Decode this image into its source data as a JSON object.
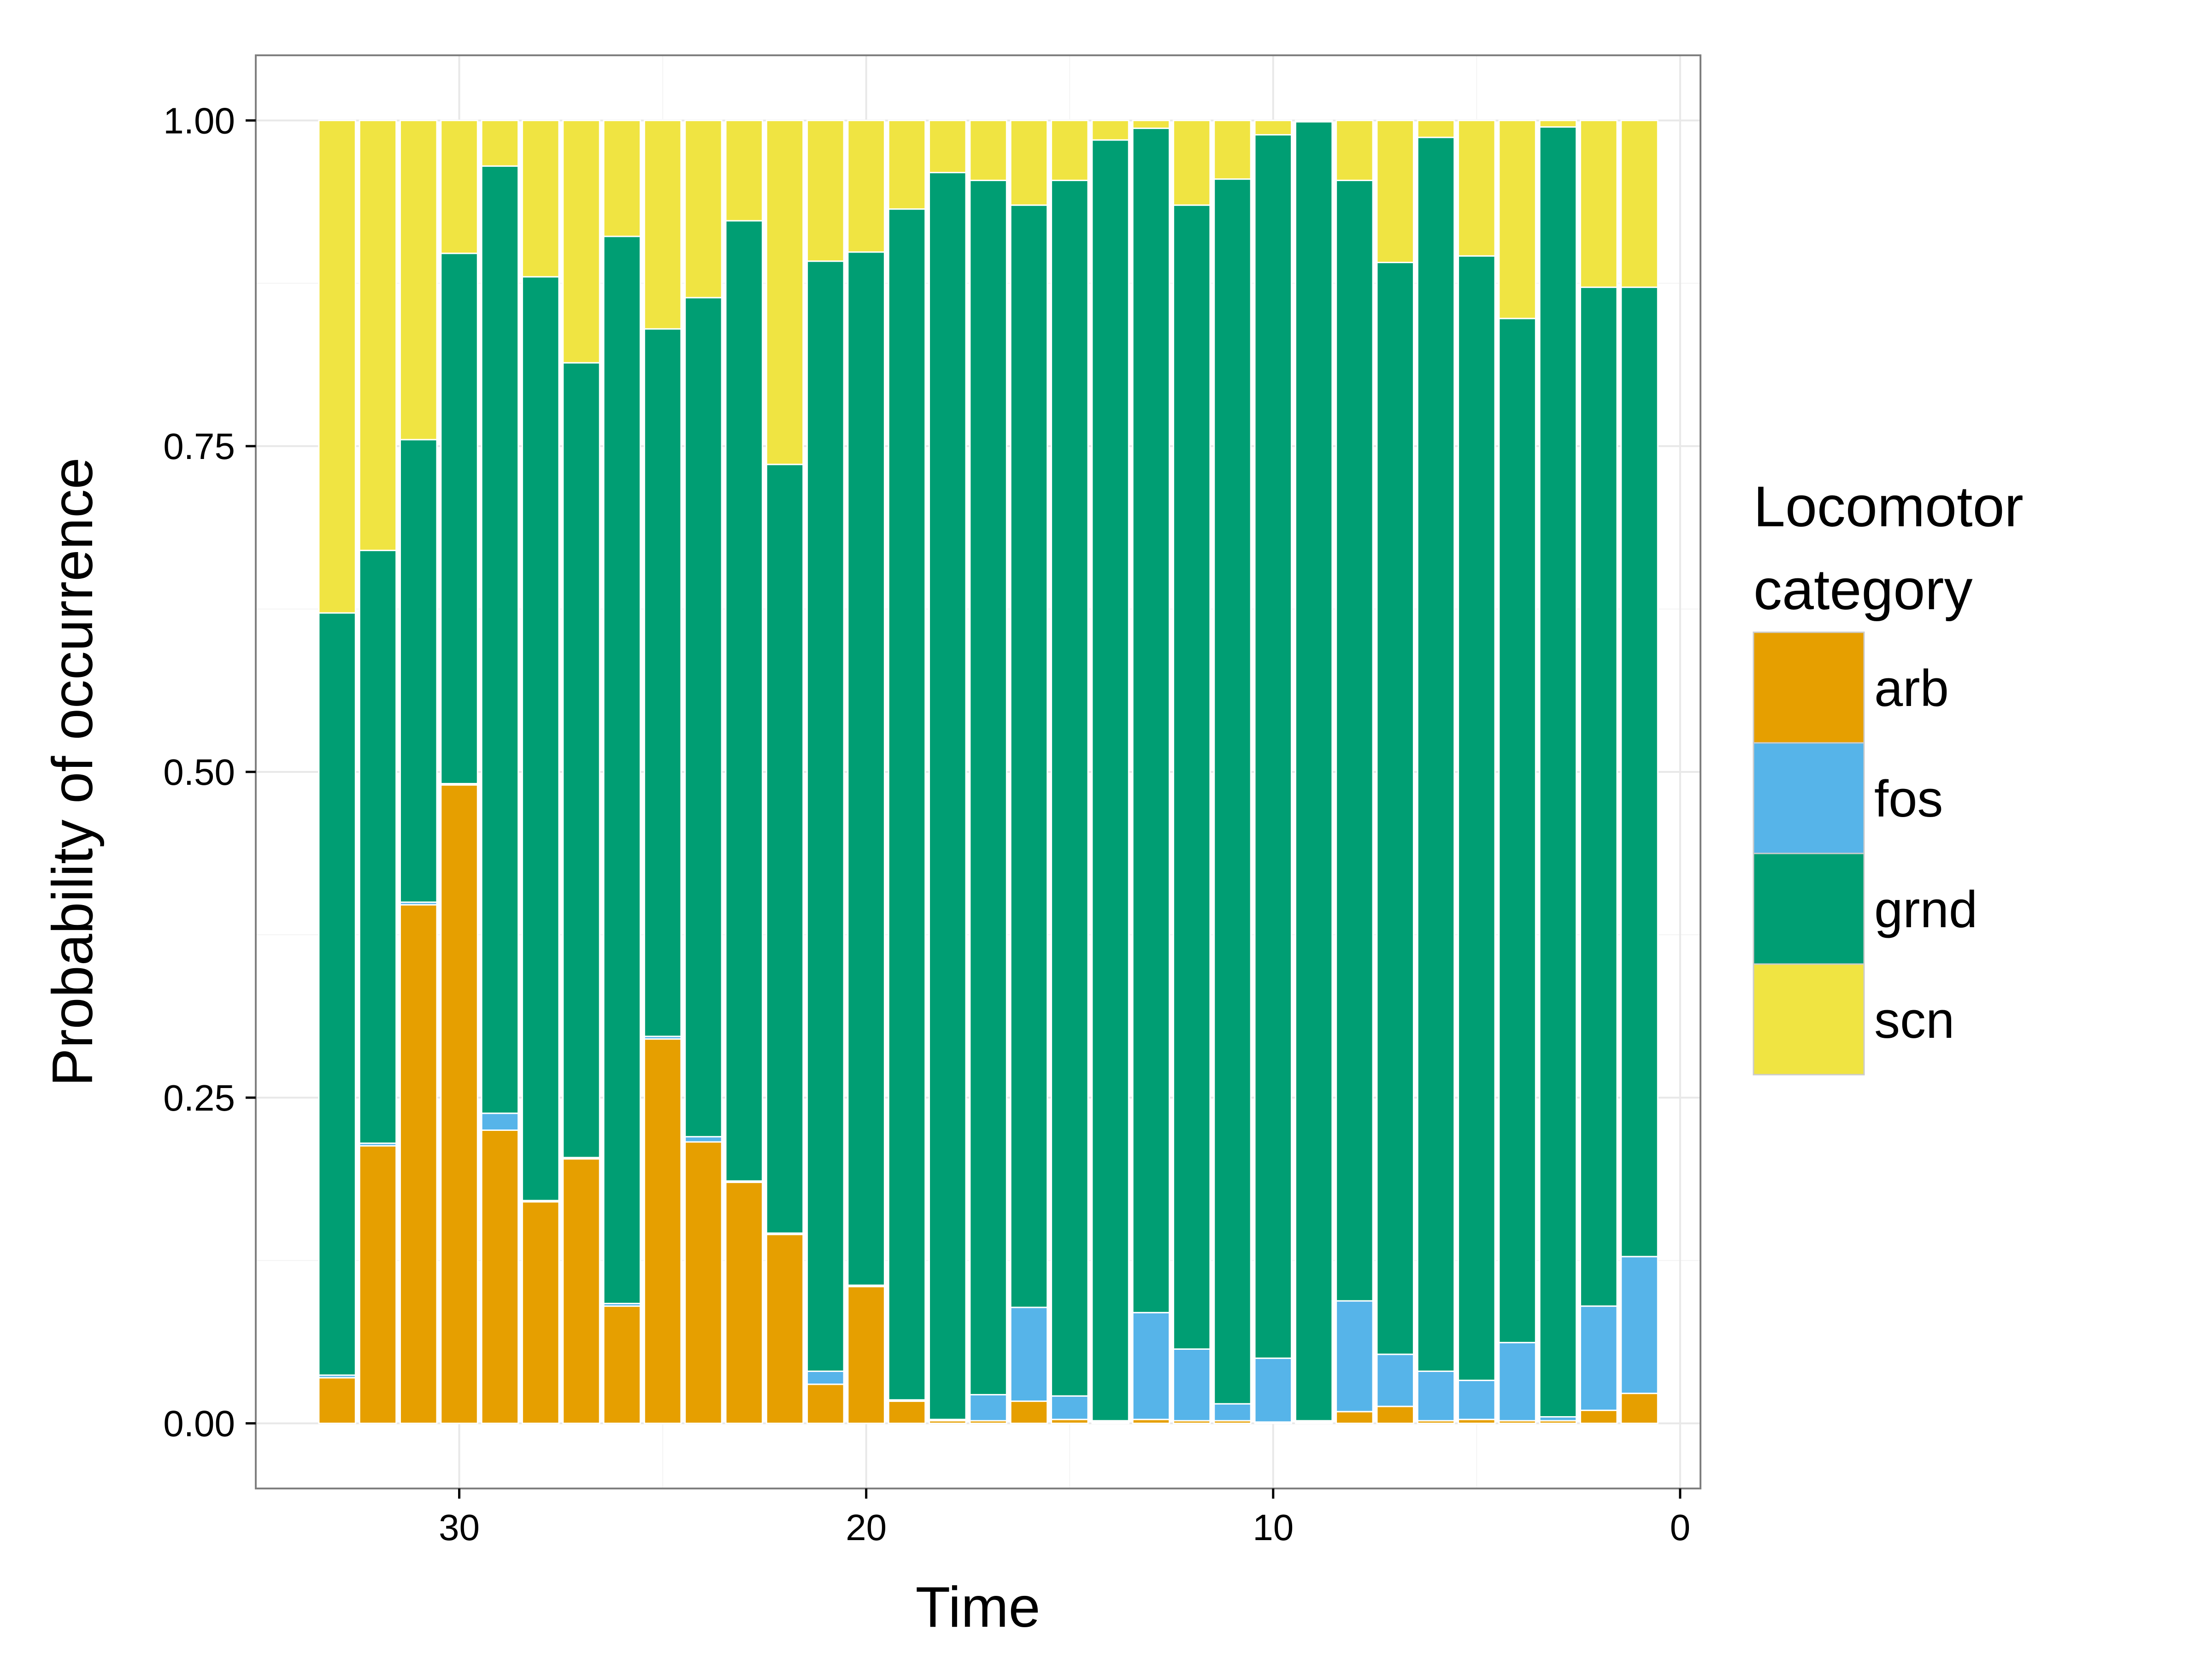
{
  "chart_data": {
    "type": "bar",
    "stacked": true,
    "xlabel": "Time",
    "ylabel": "Probability of occurrence",
    "xlim": [
      35,
      -0.5
    ],
    "x_reversed": true,
    "ylim": [
      -0.05,
      1.05
    ],
    "x_ticks": [
      30,
      20,
      10,
      0
    ],
    "y_ticks": [
      0,
      0.25,
      0.5,
      0.75,
      1
    ],
    "x_tick_labels": [
      "30",
      "20",
      "10",
      "0"
    ],
    "y_tick_labels": [
      "0.00",
      "0.25",
      "0.50",
      "0.75",
      "1.00"
    ],
    "grid": true,
    "legend": {
      "title_lines": [
        "Locomotor",
        "category"
      ],
      "placement": "right"
    },
    "x": [
      33,
      32,
      31,
      30,
      29,
      28,
      27,
      26,
      25,
      24,
      23,
      22,
      21,
      20,
      19,
      18,
      17,
      16,
      15,
      14,
      13,
      12,
      11,
      10,
      9,
      8,
      7,
      6,
      5,
      4,
      3,
      2,
      1
    ],
    "series": [
      {
        "name": "arb",
        "color": "#E69F00",
        "values": [
          0.035,
          0.213,
          0.398,
          0.49,
          0.225,
          0.17,
          0.203,
          0.09,
          0.295,
          0.216,
          0.185,
          0.145,
          0.03,
          0.105,
          0.017,
          0.002,
          0.002,
          0.017,
          0.003,
          0.001,
          0.003,
          0.002,
          0.002,
          0.001,
          0.001,
          0.009,
          0.013,
          0.002,
          0.003,
          0.002,
          0.002,
          0.01,
          0.023
        ]
      },
      {
        "name": "fos",
        "color": "#56B4E9",
        "values": [
          0.002,
          0.002,
          0.002,
          0.001,
          0.013,
          0.001,
          0.001,
          0.002,
          0.002,
          0.004,
          0.001,
          0.001,
          0.01,
          0.001,
          0.001,
          0.001,
          0.02,
          0.072,
          0.018,
          0.001,
          0.082,
          0.055,
          0.013,
          0.049,
          0.001,
          0.085,
          0.04,
          0.038,
          0.03,
          0.06,
          0.003,
          0.08,
          0.105
        ]
      },
      {
        "name": "grnd",
        "color": "#009E73",
        "values": [
          0.585,
          0.455,
          0.355,
          0.407,
          0.727,
          0.709,
          0.61,
          0.819,
          0.543,
          0.644,
          0.737,
          0.59,
          0.852,
          0.793,
          0.914,
          0.957,
          0.932,
          0.846,
          0.933,
          0.983,
          0.909,
          0.878,
          0.94,
          0.939,
          0.997,
          0.86,
          0.838,
          0.947,
          0.863,
          0.786,
          0.99,
          0.782,
          0.744
        ]
      },
      {
        "name": "scn",
        "color": "#F0E442",
        "values": [
          0.378,
          0.33,
          0.245,
          0.102,
          0.035,
          0.12,
          0.186,
          0.089,
          0.16,
          0.136,
          0.077,
          0.264,
          0.108,
          0.101,
          0.068,
          0.04,
          0.046,
          0.065,
          0.046,
          0.015,
          0.006,
          0.065,
          0.045,
          0.011,
          0.001,
          0.046,
          0.109,
          0.013,
          0.104,
          0.152,
          0.005,
          0.128,
          0.128
        ]
      }
    ]
  }
}
